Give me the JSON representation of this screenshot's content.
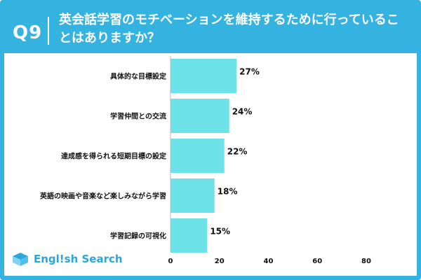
{
  "header": {
    "qnum": "Q9",
    "title": "英会話学習のモチベーションを維持するために行っていることはありますか？"
  },
  "logo": {
    "text": "Engl!sh Search"
  },
  "colors": {
    "accent": "#35b3e0",
    "bar": "#6ee2e9",
    "label": "#111111"
  },
  "chart_data": {
    "type": "bar",
    "orientation": "horizontal",
    "categories": [
      "具体的な目標設定",
      "学習仲間との交流",
      "達成感を得られる短期目標の設定",
      "英語の映画や音楽など楽しみながら学習",
      "学習記録の可視化"
    ],
    "values": [
      27,
      24,
      22,
      18,
      15
    ],
    "value_labels": [
      "27%",
      "24%",
      "22%",
      "18%",
      "15%"
    ],
    "xlim": [
      0,
      80
    ],
    "xticks": [
      0,
      20,
      40,
      60,
      80
    ],
    "grid": false
  }
}
